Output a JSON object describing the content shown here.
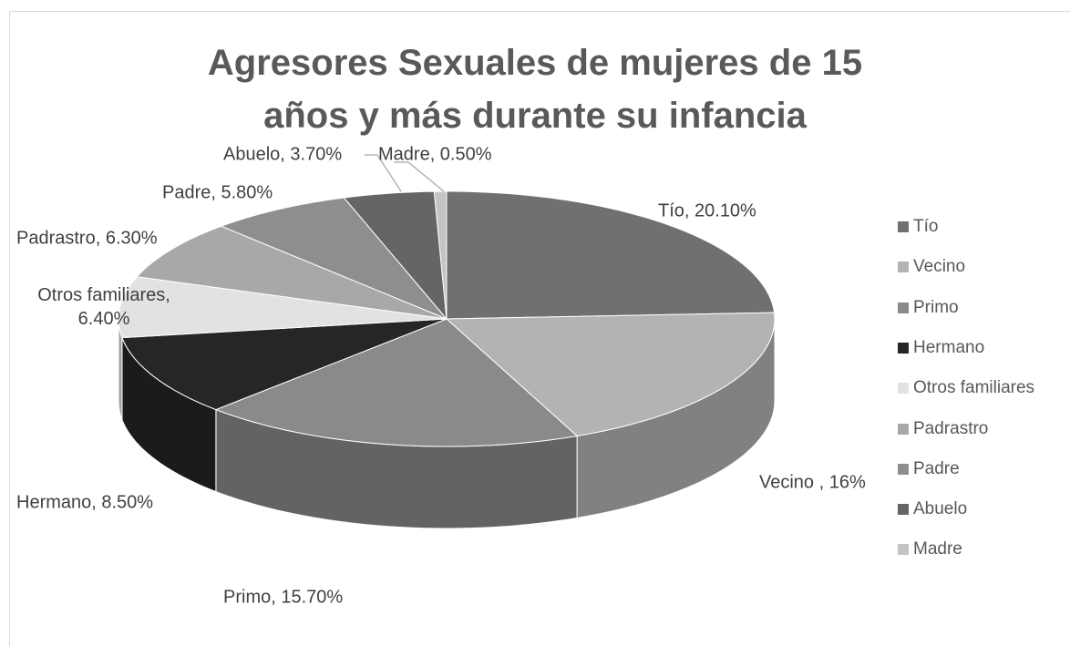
{
  "chart_data": {
    "type": "pie",
    "title": "Agresores Sexuales de mujeres de 15 años y más durante su infancia",
    "categories": [
      "Tío",
      "Vecino",
      "Primo",
      "Hermano",
      "Otros familiares",
      "Padrastro",
      "Padre",
      "Abuelo",
      "Madre"
    ],
    "values": [
      20.1,
      16,
      15.7,
      8.5,
      6.4,
      6.3,
      5.8,
      3.7,
      0.5
    ],
    "value_labels": [
      "Tío, 20.10%",
      "Vecino , 16%",
      "Primo, 15.70%",
      "Hermano, 8.50%",
      "Otros familiares, 6.40%",
      "Padrastro, 6.30%",
      "Padre, 5.80%",
      "Abuelo, 3.70%",
      "Madre, 0.50%"
    ],
    "colors": [
      "#707070",
      "#b3b3b3",
      "#8a8a8a",
      "#262626",
      "#e2e2e2",
      "#a8a8a8",
      "#8e8e8e",
      "#656565",
      "#c4c4c4"
    ],
    "legend": "right"
  }
}
